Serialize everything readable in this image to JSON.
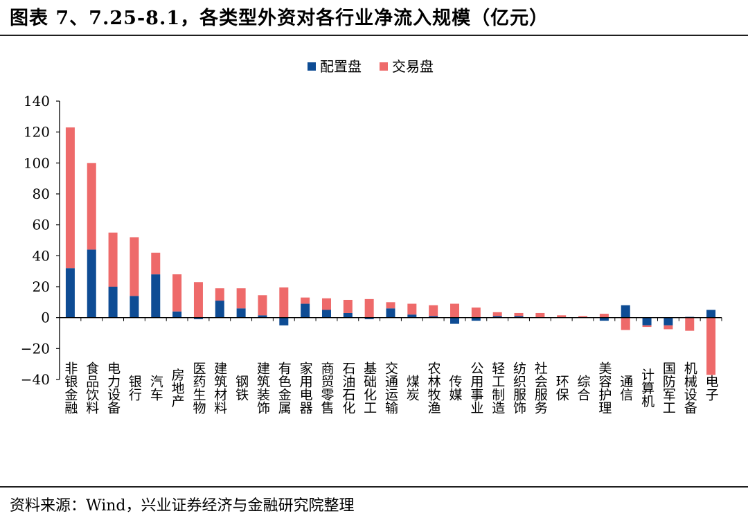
{
  "header": {
    "title": "图表 7、7.25-8.1，各类型外资对各行业净流入规模（亿元）"
  },
  "footer": {
    "source": "资料来源：Wind，兴业证券经济与金融研究院整理"
  },
  "colors": {
    "配置盘": "#0e4c94",
    "交易盘": "#ee6a6a"
  },
  "chart_data": {
    "type": "bar",
    "stacked": true,
    "title": "",
    "xlabel": "",
    "ylabel": "",
    "ylim": [
      -40,
      140
    ],
    "yticks": [
      140,
      120,
      100,
      80,
      60,
      40,
      20,
      0,
      -20,
      -40
    ],
    "ytick_labels": [
      "140",
      "120",
      "100",
      "80",
      "60",
      "40",
      "20",
      "0",
      "−20",
      "−40"
    ],
    "grid": false,
    "legend_position": "top-center",
    "categories": [
      "非银金融",
      "食品饮料",
      "电力设备",
      "银行",
      "汽车",
      "房地产",
      "医药生物",
      "建筑材料",
      "钢铁",
      "建筑装饰",
      "有色金属",
      "家用电器",
      "商贸零售",
      "石油石化",
      "基础化工",
      "交通运输",
      "煤炭",
      "农林牧渔",
      "传媒",
      "公用事业",
      "轻工制造",
      "纺织服饰",
      "社会服务",
      "环保",
      "综合",
      "美容护理",
      "通信",
      "计算机",
      "国防军工",
      "机械设备",
      "电子"
    ],
    "series": [
      {
        "name": "配置盘",
        "values": [
          32,
          44,
          20,
          14,
          28,
          4,
          -1,
          11,
          6,
          1.5,
          -5,
          9,
          5,
          3,
          -1,
          6,
          2,
          1,
          -4,
          -2,
          1,
          1,
          0,
          0,
          0,
          -2,
          8,
          -5,
          -5,
          0.5,
          5
        ]
      },
      {
        "name": "交易盘",
        "values": [
          91,
          56,
          35,
          38,
          14,
          24,
          23,
          8,
          13,
          13,
          19.5,
          4,
          7.5,
          8.5,
          12,
          4,
          7,
          7,
          9,
          6.5,
          2.5,
          2,
          3,
          1.5,
          1,
          2.5,
          -8,
          -1,
          -2.5,
          -8.5,
          -37
        ]
      }
    ]
  }
}
